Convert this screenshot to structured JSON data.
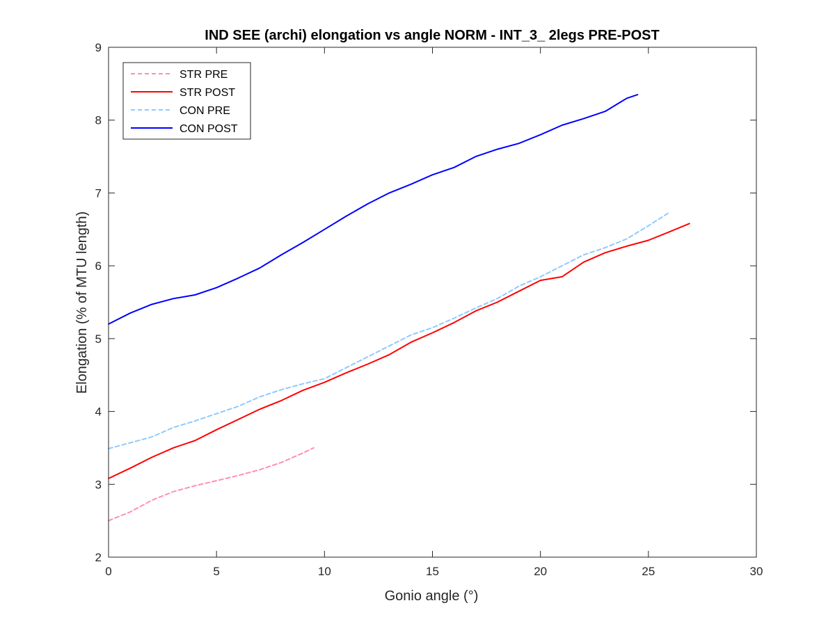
{
  "chart_data": {
    "type": "line",
    "title": "IND SEE (archi) elongation vs angle NORM - INT_3_ 2legs PRE-POST",
    "xlabel": "Gonio angle (°)",
    "ylabel": "Elongation (% of MTU length)",
    "xlim": [
      0,
      30
    ],
    "ylim": [
      2,
      9
    ],
    "xticks": [
      0,
      5,
      10,
      15,
      20,
      25,
      30
    ],
    "yticks": [
      2,
      3,
      4,
      5,
      6,
      7,
      8,
      9
    ],
    "grid": false,
    "legend_position": "top-left",
    "series": [
      {
        "name": "STR PRE",
        "color": "#ff8fb0",
        "dash": true,
        "x": [
          0,
          1,
          2,
          3,
          4,
          5,
          6,
          7,
          8,
          9,
          9.5
        ],
        "y": [
          2.5,
          2.62,
          2.78,
          2.9,
          2.98,
          3.05,
          3.12,
          3.2,
          3.3,
          3.43,
          3.5
        ]
      },
      {
        "name": "STR POST",
        "color": "#ff0000",
        "dash": false,
        "x": [
          0,
          1,
          2,
          3,
          4,
          5,
          6,
          7,
          8,
          9,
          10,
          11,
          12,
          13,
          14,
          15,
          16,
          17,
          18,
          19,
          20,
          21,
          22,
          23,
          24,
          25,
          26,
          26.9
        ],
        "y": [
          3.08,
          3.22,
          3.37,
          3.5,
          3.6,
          3.75,
          3.89,
          4.03,
          4.15,
          4.29,
          4.4,
          4.53,
          4.65,
          4.78,
          4.95,
          5.08,
          5.22,
          5.38,
          5.5,
          5.65,
          5.8,
          5.85,
          6.05,
          6.18,
          6.27,
          6.35,
          6.47,
          6.58
        ]
      },
      {
        "name": "CON PRE",
        "color": "#8fcaff",
        "dash": true,
        "x": [
          0,
          1,
          2,
          3,
          4,
          5,
          6,
          7,
          8,
          9,
          10,
          11,
          12,
          13,
          14,
          15,
          16,
          17,
          18,
          19,
          20,
          21,
          22,
          23,
          24,
          25,
          25.9
        ],
        "y": [
          3.49,
          3.57,
          3.65,
          3.78,
          3.87,
          3.97,
          4.07,
          4.2,
          4.3,
          4.38,
          4.45,
          4.6,
          4.75,
          4.9,
          5.05,
          5.15,
          5.28,
          5.42,
          5.55,
          5.72,
          5.85,
          6.0,
          6.15,
          6.25,
          6.37,
          6.55,
          6.72
        ]
      },
      {
        "name": "CON POST",
        "color": "#0000ff",
        "dash": false,
        "x": [
          0,
          1,
          2,
          3,
          4,
          5,
          6,
          7,
          8,
          9,
          10,
          11,
          12,
          13,
          14,
          15,
          16,
          17,
          18,
          19,
          20,
          21,
          22,
          23,
          24,
          24.5
        ],
        "y": [
          5.2,
          5.35,
          5.47,
          5.55,
          5.6,
          5.7,
          5.83,
          5.97,
          6.15,
          6.32,
          6.5,
          6.68,
          6.85,
          7.0,
          7.12,
          7.25,
          7.35,
          7.5,
          7.6,
          7.68,
          7.8,
          7.93,
          8.02,
          8.12,
          8.3,
          8.35
        ]
      }
    ]
  }
}
